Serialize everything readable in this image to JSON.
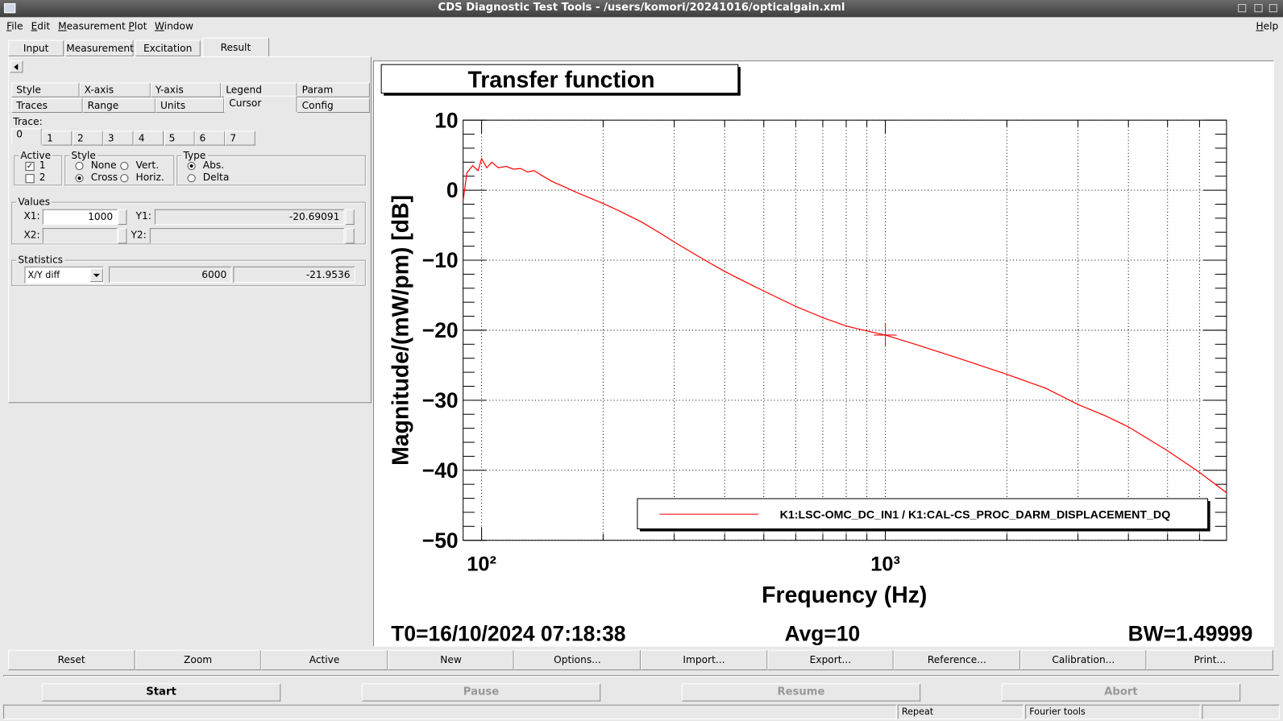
{
  "window": {
    "title": "CDS Diagnostic Test Tools - /users/komori/20241016/opticalgain.xml"
  },
  "menu": {
    "items": [
      "File",
      "Edit",
      "Measurement",
      "Plot",
      "Window"
    ],
    "help": "Help"
  },
  "tabs": [
    "Input",
    "Measurement",
    "Excitation",
    "Result"
  ],
  "option_tabs": {
    "row1": [
      "Style",
      "X-axis",
      "Y-axis",
      "Legend",
      "Param"
    ],
    "row2": [
      "Traces",
      "Range",
      "Units",
      "Cursor",
      "Config"
    ]
  },
  "trace": {
    "label": "Trace:",
    "tabs": [
      "0",
      "1",
      "2",
      "3",
      "4",
      "5",
      "6",
      "7"
    ]
  },
  "active": {
    "title": "Active",
    "items": [
      "1",
      "2"
    ]
  },
  "style": {
    "title": "Style",
    "items": [
      "None",
      "Vert.",
      "Cross",
      "Horiz."
    ]
  },
  "type": {
    "title": "Type",
    "items": [
      "Abs.",
      "Delta"
    ]
  },
  "values": {
    "title": "Values",
    "x1_label": "X1:",
    "x1": 1000,
    "y1_label": "Y1:",
    "y1": -20.69091,
    "x2_label": "X2:",
    "y2_label": "Y2:"
  },
  "statistics": {
    "title": "Statistics",
    "mode": "X/Y diff",
    "dx": "6000",
    "dy": "-21.9536"
  },
  "buttons": [
    "Reset",
    "Zoom",
    "Active",
    "New",
    "Options...",
    "Import...",
    "Export...",
    "Reference...",
    "Calibration...",
    "Print..."
  ],
  "controls": [
    "Start",
    "Pause",
    "Resume",
    "Abort"
  ],
  "status": [
    "Repeat",
    "Fourier tools"
  ],
  "chart_data": {
    "type": "line",
    "title": "Transfer function",
    "xlabel": "Frequency (Hz)",
    "ylabel": "Magnitude/(mW/pm) [dB]",
    "xscale": "log",
    "grid": true,
    "legend": "lower right",
    "xlim": [
      90,
      7000
    ],
    "xticks": [
      {
        "value": 100,
        "label": "10²"
      },
      {
        "value": 1000,
        "label": "10³"
      }
    ],
    "xminorticks": [
      200,
      300,
      400,
      500,
      600,
      700,
      800,
      900,
      2000,
      3000,
      4000,
      5000,
      6000
    ],
    "ylim": [
      -50,
      10
    ],
    "yticks": [
      {
        "value": -50,
        "label": "−50"
      },
      {
        "value": -40,
        "label": "−40"
      },
      {
        "value": -30,
        "label": "−30"
      },
      {
        "value": -20,
        "label": "−20"
      },
      {
        "value": -10,
        "label": "−10"
      },
      0,
      10
    ],
    "yminorticks": [
      -48,
      -46,
      -44,
      -42,
      -38,
      -36,
      -34,
      -32,
      -28,
      -26,
      -24,
      -22,
      -18,
      -16,
      -14,
      -12,
      -8,
      -6,
      -4,
      -2,
      2,
      4,
      6,
      8
    ],
    "x": [
      90,
      92,
      95,
      98,
      100,
      103,
      106,
      110,
      115,
      120,
      125,
      130,
      135,
      140,
      150,
      160,
      170,
      180,
      200,
      220,
      250,
      280,
      300,
      350,
      400,
      450,
      500,
      600,
      700,
      800,
      900,
      1000,
      1200,
      1500,
      2000,
      2500,
      3000,
      3500,
      4000,
      5000,
      6000,
      7000
    ],
    "series": [
      {
        "name": "K1:LSC-OMC_DC_IN1 / K1:CAL-CS_PROC_DARM_DISPLACEMENT_DQ",
        "color": "#ff0000",
        "values": [
          -1.5,
          2.5,
          3.5,
          2.8,
          4.5,
          3.2,
          4,
          3.2,
          3.4,
          3,
          3.1,
          2.6,
          2.8,
          2.2,
          1.2,
          0.5,
          -0.2,
          -0.8,
          -1.9,
          -3,
          -4.6,
          -6.3,
          -7.4,
          -9.7,
          -11.6,
          -13.1,
          -14.4,
          -16.6,
          -18.2,
          -19.4,
          -20.1,
          -20.69,
          -22.1,
          -23.9,
          -26.3,
          -28.3,
          -30.6,
          -32.2,
          -33.8,
          -37.2,
          -40.3,
          -43.2
        ]
      }
    ],
    "footer": {
      "t0": "T0=16/10/2024 07:18:38",
      "avg": "Avg=10",
      "bw": "BW=1.49999"
    }
  }
}
